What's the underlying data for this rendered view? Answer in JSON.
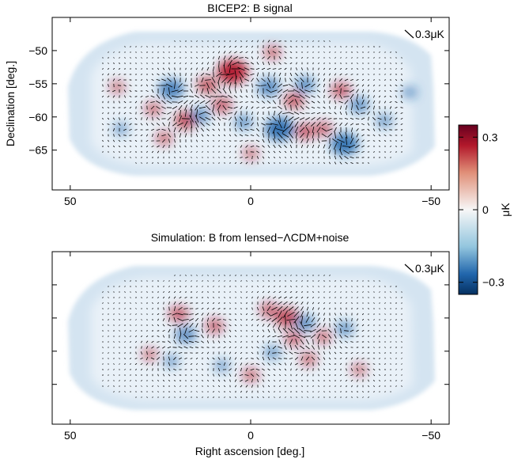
{
  "chart_data": [
    {
      "type": "heatmap",
      "title": "BICEP2: B signal",
      "xlabel": "",
      "ylabel": "Declination [deg.]",
      "xlim": [
        55,
        -55
      ],
      "ylim": [
        -71,
        -45
      ],
      "xticks": [
        50,
        0,
        -50
      ],
      "xtick_labels": [
        "50",
        "0",
        "−50"
      ],
      "yticks": [
        -50,
        -55,
        -60,
        -65
      ],
      "ytick_labels": [
        "−50",
        "−55",
        "−60",
        "−65"
      ],
      "vector_scale_label": "0.3μK",
      "overlay": "polarization vectors (B-mode)",
      "features": [
        {
          "ra": 5,
          "dec": -53.2,
          "value": 0.32
        },
        {
          "ra": 22,
          "dec": -55.8,
          "value": -0.22
        },
        {
          "ra": 12,
          "dec": -55.2,
          "value": 0.16
        },
        {
          "ra": -5,
          "dec": -55.5,
          "value": -0.18
        },
        {
          "ra": -12,
          "dec": -57.5,
          "value": 0.15
        },
        {
          "ra": -15,
          "dec": -55.2,
          "value": -0.15
        },
        {
          "ra": -25,
          "dec": -56,
          "value": 0.14
        },
        {
          "ra": -30,
          "dec": -58.2,
          "value": -0.14
        },
        {
          "ra": 18,
          "dec": -60.5,
          "value": 0.18
        },
        {
          "ra": 14,
          "dec": -59.8,
          "value": -0.14
        },
        {
          "ra": 8,
          "dec": -58.2,
          "value": 0.14
        },
        {
          "ra": 2,
          "dec": -60.8,
          "value": -0.12
        },
        {
          "ra": -8,
          "dec": -61.8,
          "value": -0.28
        },
        {
          "ra": -15,
          "dec": -62.2,
          "value": 0.14
        },
        {
          "ra": -20,
          "dec": -61.8,
          "value": 0.12
        },
        {
          "ra": -26,
          "dec": -64.1,
          "value": -0.26
        },
        {
          "ra": 24,
          "dec": -63.2,
          "value": 0.1
        },
        {
          "ra": 27,
          "dec": -58.8,
          "value": 0.1
        },
        {
          "ra": -37,
          "dec": -60.6,
          "value": -0.1
        },
        {
          "ra": -44,
          "dec": -56.3,
          "value": -0.08
        },
        {
          "ra": 37,
          "dec": -55.5,
          "value": 0.08
        },
        {
          "ra": 36,
          "dec": -61.8,
          "value": -0.08
        },
        {
          "ra": 0,
          "dec": -65.5,
          "value": 0.08
        },
        {
          "ra": -6,
          "dec": -50.3,
          "value": 0.1
        }
      ]
    },
    {
      "type": "heatmap",
      "title": "Simulation: B from lensed−ΛCDM+noise",
      "xlabel": "Right ascension [deg.]",
      "ylabel": "",
      "xlim": [
        55,
        -55
      ],
      "ylim": [
        -71,
        -45
      ],
      "xticks": [
        50,
        0,
        -50
      ],
      "xtick_labels": [
        "50",
        "0",
        "−50"
      ],
      "yticks": [
        -50,
        -55,
        -60,
        -65
      ],
      "ytick_labels": [],
      "vector_scale_label": "0.3μK",
      "overlay": "polarization vectors (B-mode)",
      "features": [
        {
          "ra": 20,
          "dec": -54.4,
          "value": 0.14
        },
        {
          "ra": 18,
          "dec": -57.5,
          "value": -0.16
        },
        {
          "ra": 10,
          "dec": -56.2,
          "value": 0.12
        },
        {
          "ra": -5,
          "dec": -53.8,
          "value": 0.12
        },
        {
          "ra": -10,
          "dec": -54.9,
          "value": 0.2
        },
        {
          "ra": -15,
          "dec": -55.8,
          "value": -0.15
        },
        {
          "ra": -12,
          "dec": -58.1,
          "value": 0.12
        },
        {
          "ra": -20,
          "dec": -57.8,
          "value": 0.1
        },
        {
          "ra": -26,
          "dec": -56.6,
          "value": -0.12
        },
        {
          "ra": -6,
          "dec": -60.2,
          "value": -0.1
        },
        {
          "ra": -16,
          "dec": -61.2,
          "value": 0.1
        },
        {
          "ra": 0,
          "dec": -63.6,
          "value": 0.1
        },
        {
          "ra": 22,
          "dec": -61.5,
          "value": -0.08
        },
        {
          "ra": -30,
          "dec": -62.8,
          "value": 0.08
        },
        {
          "ra": 28,
          "dec": -60.5,
          "value": 0.08
        },
        {
          "ra": 8,
          "dec": -62.2,
          "value": -0.08
        }
      ]
    }
  ],
  "colorbar": {
    "label": "μK",
    "range": [
      -0.35,
      0.35
    ],
    "ticks": [
      0.3,
      0,
      -0.3
    ],
    "tick_labels": [
      "0.3",
      "0",
      "−0.3"
    ]
  },
  "colors": {
    "positive": "#b2182b",
    "negative": "#2166ac",
    "zero": "#f7f7f7",
    "background_field": "#d4e4f1",
    "vector": "#000000"
  }
}
